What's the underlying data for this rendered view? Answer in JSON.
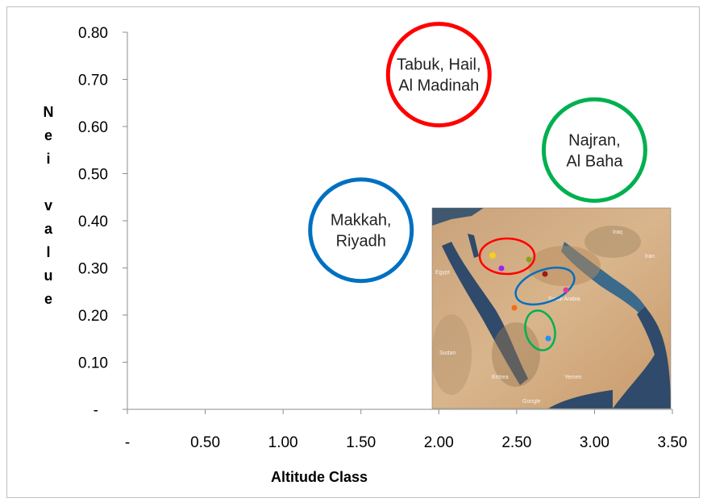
{
  "chart_data": {
    "type": "scatter",
    "title": "",
    "xlabel": "Altitude Class",
    "ylabel": "Nei value",
    "xlim": [
      0,
      3.5
    ],
    "ylim": [
      0,
      0.8
    ],
    "x_ticks": [
      "-",
      "0.50",
      "1.00",
      "1.50",
      "2.00",
      "2.50",
      "3.00",
      "3.50"
    ],
    "y_ticks": [
      "-",
      "0.10",
      "0.20",
      "0.30",
      "0.40",
      "0.50",
      "0.60",
      "0.70",
      "0.80"
    ],
    "grid": false,
    "points": [
      {
        "label_lines": [
          "Tabuk, Hail,",
          "Al Madinah"
        ],
        "x": 2.0,
        "y": 0.71,
        "color": "#ff0000"
      },
      {
        "label_lines": [
          "Najran,",
          "Al Baha"
        ],
        "x": 3.0,
        "y": 0.55,
        "color": "#00b050"
      },
      {
        "label_lines": [
          "Makkah,",
          "Riyadh"
        ],
        "x": 1.5,
        "y": 0.38,
        "color": "#0070c0"
      }
    ]
  },
  "map_inset": {
    "labels": [
      "Egypt",
      "Saudi Arabia",
      "Sudan",
      "Iraq",
      "Iran",
      "Yemen",
      "Eritrea",
      "Google"
    ],
    "circles": [
      {
        "name": "north",
        "color": "#ff0000"
      },
      {
        "name": "central",
        "color": "#0070c0"
      },
      {
        "name": "south",
        "color": "#00b050"
      }
    ]
  }
}
